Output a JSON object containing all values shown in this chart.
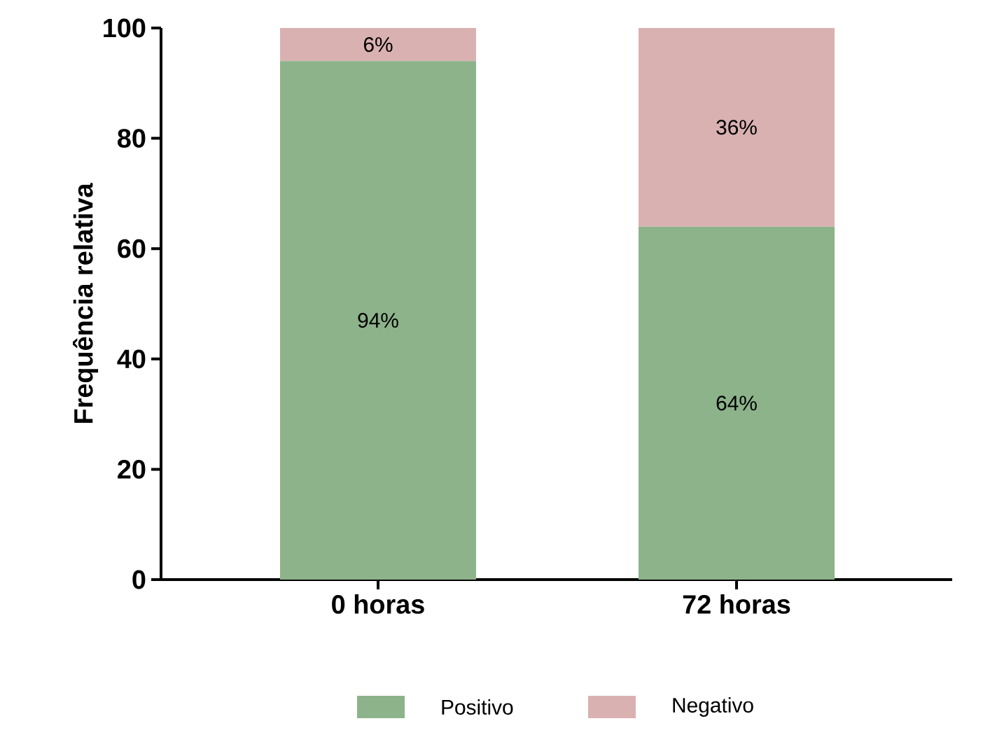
{
  "chart_data": {
    "type": "bar",
    "stacked": true,
    "ylabel": "Frequência relativa",
    "categories": [
      "0 horas",
      "72 horas"
    ],
    "ylim": [
      0,
      100
    ],
    "yticks": [
      0,
      20,
      40,
      60,
      80,
      100
    ],
    "legend": "bottom",
    "grid": false,
    "series": [
      {
        "name": "Positivo",
        "color": "#8db38a",
        "values": [
          94,
          64
        ],
        "value_labels": [
          "94%",
          "64%"
        ]
      },
      {
        "name": "Negativo",
        "color": "#d9b1b1",
        "values": [
          6,
          36
        ],
        "value_labels": [
          "6%",
          "36%"
        ]
      }
    ]
  }
}
